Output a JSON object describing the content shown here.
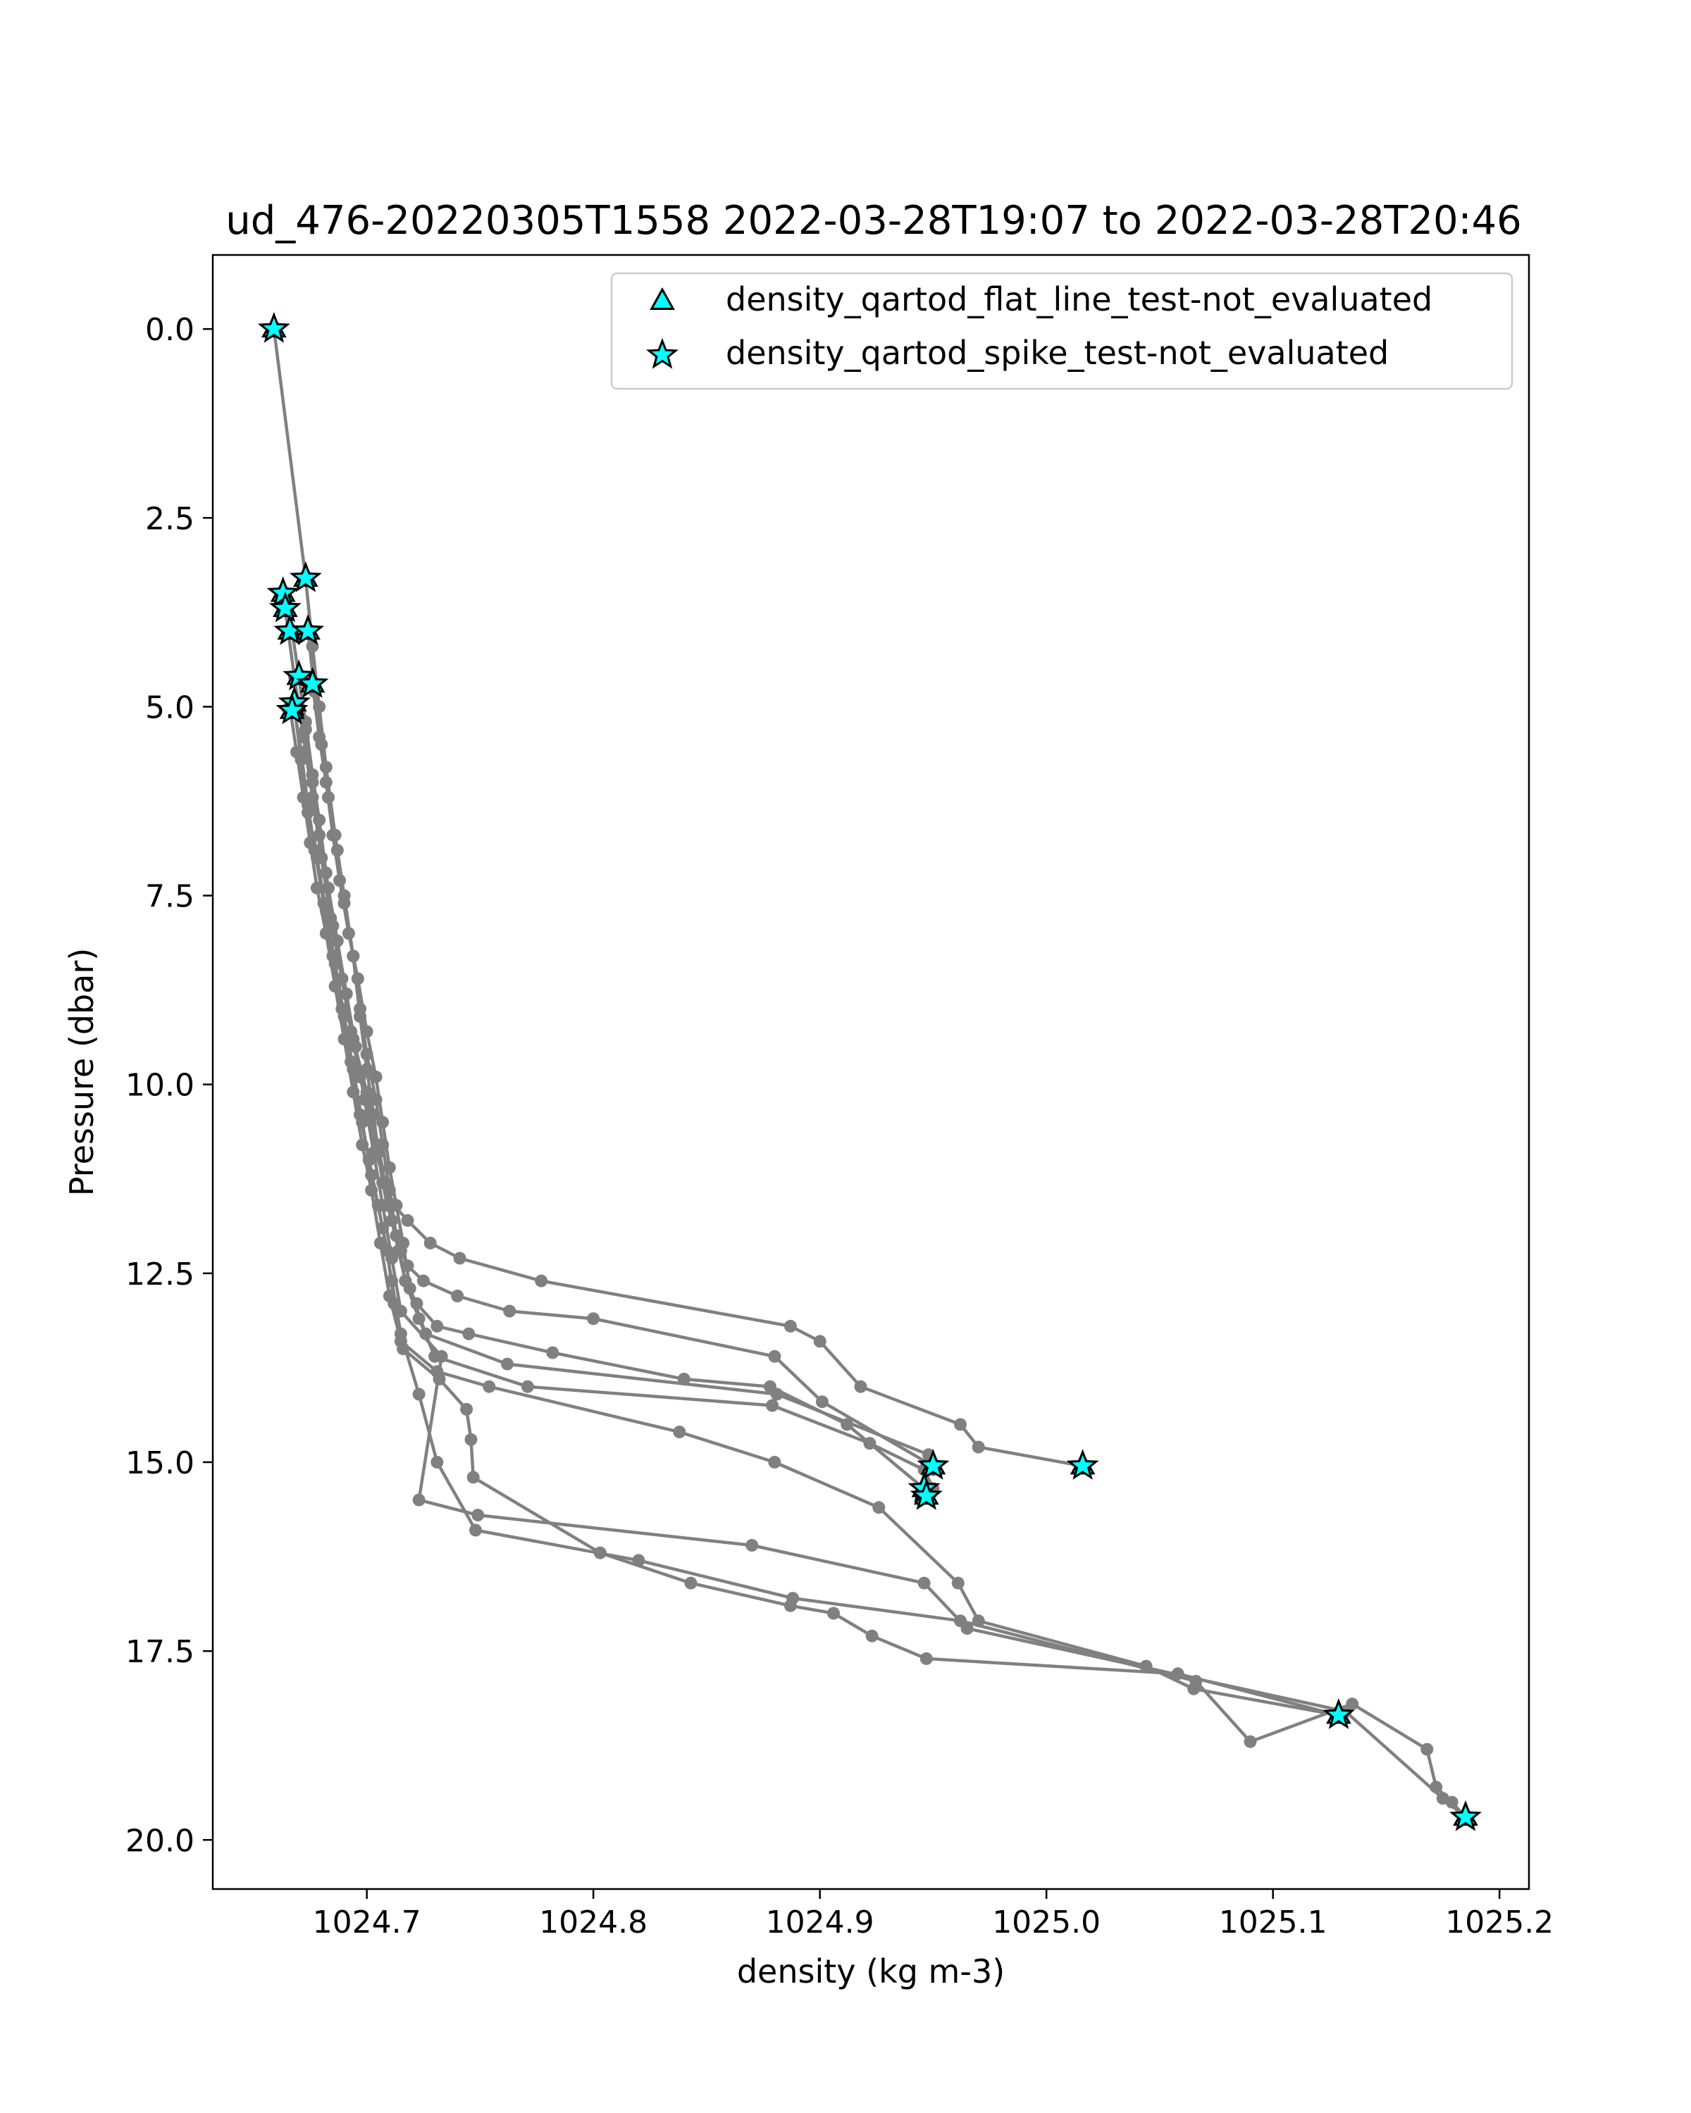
{
  "chart_data": {
    "type": "scatter",
    "title": "ud_476-20220305T1558 2022-03-28T19:07 to 2022-03-28T20:46",
    "xlabel": "density (kg m-3)",
    "ylabel": "Pressure (dbar)",
    "xlim": [
      1024.632,
      1025.213
    ],
    "ylim": [
      20.65,
      -0.98
    ],
    "y_inverted": true,
    "grid": false,
    "legend_position": "top-right",
    "x_ticks": [
      "1024.7",
      "1024.8",
      "1024.9",
      "1025.0",
      "1025.1",
      "1025.2"
    ],
    "y_ticks": [
      "0.0",
      "2.5",
      "5.0",
      "7.5",
      "10.0",
      "12.5",
      "15.0",
      "17.5",
      "20.0"
    ],
    "colors": {
      "profile_line": "#808080",
      "marker_fill": "#00ffff",
      "marker_edge": "#000000"
    },
    "legend": [
      {
        "label": "density_qartod_flat_line_test-not_evaluated",
        "marker": "triangle"
      },
      {
        "label": "density_qartod_spike_test-not_evaluated",
        "marker": "star"
      }
    ],
    "profiles": [
      {
        "x": [
          1024.659,
          1024.673,
          1024.676,
          1024.679,
          1024.682,
          1024.686,
          1024.69,
          1024.694,
          1024.697,
          1024.7,
          1024.703,
          1024.705,
          1024.707,
          1024.709,
          1024.711,
          1024.713,
          1024.715,
          1024.718,
          1024.725,
          1024.74,
          1024.763,
          1024.8,
          1024.88,
          1024.901,
          1024.95
        ],
        "y": [
          0.0,
          3.3,
          4.2,
          5.0,
          5.8,
          6.7,
          7.5,
          8.3,
          9.1,
          9.8,
          10.4,
          10.9,
          11.3,
          11.6,
          11.8,
          12.0,
          12.2,
          12.4,
          12.6,
          12.8,
          13.0,
          13.1,
          13.6,
          14.2,
          15.05
        ]
      },
      {
        "x": [
          1024.663,
          1024.668,
          1024.672,
          1024.676,
          1024.68,
          1024.684,
          1024.689,
          1024.694,
          1024.7,
          1024.705,
          1024.708,
          1024.711,
          1024.714,
          1024.717,
          1024.722,
          1024.731,
          1024.745,
          1024.782,
          1024.84,
          1024.878,
          1024.912,
          1024.948
        ],
        "y": [
          3.5,
          4.6,
          5.4,
          6.2,
          7.0,
          7.8,
          8.6,
          9.4,
          10.1,
          10.8,
          11.3,
          11.8,
          12.2,
          12.6,
          12.9,
          13.2,
          13.3,
          13.55,
          13.9,
          14.0,
          14.5,
          15.4
        ]
      },
      {
        "x": [
          1024.664,
          1024.667,
          1024.67,
          1024.673,
          1024.676,
          1024.679,
          1024.682,
          1024.685,
          1024.689,
          1024.693,
          1024.697,
          1024.701,
          1024.704,
          1024.708,
          1024.712,
          1024.718,
          1024.728,
          1024.741,
          1024.777,
          1024.887,
          1024.9,
          1024.918,
          1024.962,
          1024.97,
          1025.016
        ],
        "y": [
          3.7,
          4.0,
          4.6,
          5.2,
          5.9,
          6.5,
          7.2,
          7.9,
          8.6,
          9.3,
          9.9,
          10.4,
          10.9,
          11.3,
          11.6,
          11.8,
          12.1,
          12.3,
          12.6,
          13.2,
          13.4,
          14.0,
          14.5,
          14.8,
          15.05
        ]
      },
      {
        "x": [
          1024.674,
          1024.677,
          1024.68,
          1024.683,
          1024.687,
          1024.69,
          1024.694,
          1024.697,
          1024.7,
          1024.704,
          1024.707,
          1024.71,
          1024.713,
          1024.717,
          1024.723,
          1024.73,
          1024.771,
          1024.879,
          1024.922,
          1024.946,
          1024.95
        ],
        "y": [
          4.0,
          4.8,
          5.5,
          6.2,
          6.9,
          7.6,
          8.3,
          9.0,
          9.6,
          10.2,
          10.8,
          11.4,
          12.0,
          12.6,
          13.1,
          13.6,
          14.0,
          14.25,
          14.75,
          15.1,
          15.35
        ]
      },
      {
        "x": [
          1024.676,
          1024.679,
          1024.682,
          1024.685,
          1024.688,
          1024.692,
          1024.696,
          1024.7,
          1024.704,
          1024.707,
          1024.71,
          1024.713,
          1024.716,
          1024.719,
          1024.726,
          1024.762,
          1024.881,
          1024.948,
          1024.95
        ],
        "y": [
          4.7,
          5.4,
          6.0,
          6.7,
          7.3,
          8.0,
          8.6,
          9.3,
          9.9,
          10.5,
          11.1,
          11.6,
          12.1,
          12.7,
          13.3,
          13.7,
          14.1,
          14.9,
          15.1
        ]
      },
      {
        "x": [
          1024.668,
          1024.671,
          1024.674,
          1024.677,
          1024.681,
          1024.685,
          1024.689,
          1024.693,
          1024.697,
          1024.701,
          1024.705,
          1024.709,
          1024.712,
          1024.716,
          1024.732,
          1024.744,
          1024.746,
          1024.747,
          1024.803,
          1024.843,
          1024.887,
          1024.906,
          1024.923,
          1024.947,
          1025.058,
          1025.129
        ],
        "y": [
          5.0,
          5.6,
          6.3,
          6.9,
          7.6,
          8.3,
          9.0,
          9.7,
          10.4,
          11.0,
          11.6,
          12.2,
          12.9,
          13.5,
          13.9,
          14.3,
          14.7,
          15.2,
          16.2,
          16.6,
          16.9,
          17.0,
          17.3,
          17.6,
          17.8,
          18.35
        ]
      },
      {
        "x": [
          1024.666,
          1024.669,
          1024.672,
          1024.675,
          1024.678,
          1024.682,
          1024.686,
          1024.69,
          1024.694,
          1024.698,
          1024.702,
          1024.706,
          1024.71,
          1024.715,
          1024.731,
          1024.754,
          1024.838,
          1024.88,
          1024.926,
          1024.961,
          1024.97,
          1025.044,
          1025.065,
          1025.129
        ],
        "y": [
          5.0,
          5.6,
          6.2,
          6.8,
          7.4,
          8.0,
          8.7,
          9.4,
          10.1,
          10.8,
          11.4,
          12.1,
          12.8,
          13.4,
          13.8,
          14.0,
          14.6,
          15.0,
          15.6,
          16.6,
          17.1,
          17.7,
          18.0,
          18.35
        ]
      },
      {
        "x": [
          1024.668,
          1024.671,
          1024.674,
          1024.678,
          1024.682,
          1024.686,
          1024.69,
          1024.694,
          1024.698,
          1024.702,
          1024.707,
          1024.711,
          1024.715,
          1024.723,
          1024.731,
          1024.748,
          1024.82,
          1024.888,
          1024.962,
          1025.066,
          1025.09,
          1025.135,
          1025.168,
          1025.172,
          1025.179,
          1025.185
        ],
        "y": [
          5.0,
          5.7,
          6.4,
          7.0,
          7.7,
          8.4,
          9.1,
          9.8,
          10.5,
          11.2,
          11.9,
          12.6,
          13.3,
          14.1,
          15.0,
          15.9,
          16.3,
          16.8,
          17.1,
          17.9,
          18.7,
          18.2,
          18.8,
          19.3,
          19.5,
          19.7
        ]
      },
      {
        "x": [
          1024.67,
          1024.673,
          1024.676,
          1024.679,
          1024.683,
          1024.687,
          1024.691,
          1024.695,
          1024.699,
          1024.703,
          1024.707,
          1024.711,
          1024.715,
          1024.733,
          1024.723,
          1024.749,
          1024.87,
          1024.946,
          1024.965,
          1025.132,
          1025.175,
          1025.185
        ],
        "y": [
          4.6,
          5.3,
          6.0,
          6.7,
          7.4,
          8.1,
          8.8,
          9.5,
          10.2,
          10.9,
          11.6,
          12.3,
          13.0,
          13.6,
          15.5,
          15.7,
          16.1,
          16.6,
          17.2,
          18.3,
          19.45,
          19.7
        ]
      }
    ],
    "flat_line_test_points": {
      "x": [
        1024.659,
        1024.673,
        1024.663,
        1024.664,
        1024.666,
        1024.674,
        1024.67,
        1024.676,
        1024.668,
        1024.667,
        1024.95,
        1024.946,
        1024.947,
        1025.016,
        1025.129,
        1025.185
      ],
      "y": [
        0.0,
        3.3,
        3.5,
        3.7,
        4.0,
        4.0,
        4.6,
        4.7,
        4.95,
        5.05,
        15.05,
        15.35,
        15.45,
        15.05,
        18.35,
        19.7
      ]
    },
    "spike_test_points": {
      "x": [
        1024.659,
        1024.673,
        1024.663,
        1024.664,
        1024.666,
        1024.674,
        1024.67,
        1024.676,
        1024.668,
        1024.667,
        1024.95,
        1024.946,
        1024.947,
        1025.016,
        1025.129,
        1025.185
      ],
      "y": [
        0.0,
        3.3,
        3.5,
        3.7,
        4.0,
        4.0,
        4.6,
        4.7,
        4.95,
        5.05,
        15.05,
        15.35,
        15.45,
        15.05,
        18.35,
        19.7
      ]
    }
  }
}
